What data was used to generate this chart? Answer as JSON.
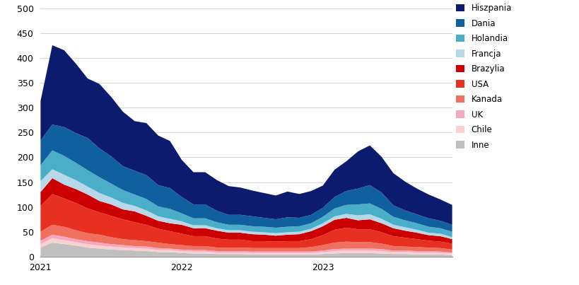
{
  "title": "",
  "xlabel": "",
  "ylabel": "",
  "ylim": [
    0,
    500
  ],
  "yticks": [
    0,
    50,
    100,
    150,
    200,
    250,
    300,
    350,
    400,
    450,
    500
  ],
  "xtick_positions": [
    0,
    12,
    24
  ],
  "xtick_labels": [
    "2021",
    "2022",
    "2023"
  ],
  "series_labels": [
    "Hiszpania",
    "Dania",
    "Holandia",
    "Francja",
    "Brazylia",
    "USA",
    "Kanada",
    "UK",
    "Chile",
    "Inne"
  ],
  "series_colors": [
    "#0d1b6e",
    "#1060a0",
    "#4baec8",
    "#b8d8ea",
    "#cc0000",
    "#e83020",
    "#f07060",
    "#f5a8c0",
    "#fad0d0",
    "#c0bfbf"
  ],
  "data": {
    "Hiszpania": [
      80,
      160,
      155,
      140,
      120,
      130,
      120,
      110,
      100,
      105,
      100,
      95,
      75,
      65,
      65,
      62,
      58,
      55,
      52,
      50,
      48,
      52,
      48,
      48,
      45,
      55,
      60,
      75,
      80,
      72,
      65,
      58,
      52,
      48,
      43,
      40
    ],
    "Dania": [
      50,
      52,
      58,
      60,
      65,
      58,
      55,
      48,
      48,
      48,
      43,
      42,
      33,
      28,
      28,
      23,
      20,
      20,
      20,
      18,
      17,
      19,
      17,
      17,
      18,
      23,
      28,
      32,
      37,
      33,
      23,
      20,
      18,
      17,
      15,
      14
    ],
    "Holandia": [
      32,
      38,
      38,
      35,
      33,
      32,
      28,
      26,
      23,
      23,
      20,
      20,
      16,
      14,
      14,
      12,
      11,
      11,
      11,
      11,
      11,
      11,
      11,
      11,
      13,
      16,
      18,
      22,
      22,
      20,
      16,
      14,
      13,
      12,
      11,
      11
    ],
    "Francja": [
      22,
      18,
      20,
      18,
      16,
      16,
      14,
      13,
      11,
      11,
      9,
      9,
      7,
      6,
      6,
      5,
      5,
      5,
      5,
      5,
      5,
      5,
      5,
      5,
      6,
      7,
      8,
      10,
      10,
      9,
      7,
      7,
      6,
      5,
      5,
      4
    ],
    "Brazylia": [
      28,
      32,
      28,
      28,
      28,
      23,
      23,
      20,
      22,
      18,
      16,
      16,
      18,
      16,
      16,
      16,
      14,
      14,
      14,
      13,
      12,
      13,
      14,
      16,
      18,
      20,
      20,
      18,
      20,
      18,
      16,
      14,
      13,
      11,
      11,
      9
    ],
    "USA": [
      52,
      62,
      57,
      55,
      50,
      45,
      43,
      40,
      36,
      33,
      28,
      26,
      23,
      20,
      20,
      18,
      16,
      16,
      14,
      14,
      13,
      14,
      14,
      16,
      20,
      26,
      28,
      26,
      26,
      23,
      20,
      18,
      16,
      14,
      13,
      12
    ],
    "Kanada": [
      18,
      20,
      20,
      18,
      16,
      16,
      14,
      12,
      12,
      11,
      11,
      9,
      9,
      8,
      8,
      7,
      7,
      7,
      7,
      7,
      7,
      7,
      7,
      9,
      11,
      13,
      14,
      13,
      13,
      11,
      9,
      8,
      8,
      7,
      7,
      6
    ],
    "UK": [
      7,
      7,
      7,
      6,
      6,
      6,
      5,
      5,
      4,
      4,
      4,
      3,
      3,
      3,
      3,
      3,
      3,
      3,
      3,
      3,
      3,
      3,
      3,
      3,
      3,
      4,
      4,
      4,
      4,
      4,
      3,
      3,
      3,
      3,
      3,
      2
    ],
    "Chile": [
      7,
      9,
      8,
      7,
      7,
      6,
      6,
      5,
      5,
      5,
      4,
      4,
      4,
      4,
      4,
      3,
      3,
      3,
      3,
      3,
      3,
      3,
      3,
      3,
      4,
      5,
      5,
      5,
      5,
      5,
      4,
      4,
      4,
      4,
      3,
      3
    ],
    "Inne": [
      18,
      28,
      25,
      22,
      18,
      16,
      14,
      13,
      12,
      11,
      9,
      9,
      7,
      6,
      6,
      5,
      5,
      5,
      4,
      4,
      4,
      4,
      4,
      4,
      5,
      6,
      7,
      7,
      7,
      6,
      5,
      5,
      4,
      4,
      4,
      3
    ]
  },
  "background_color": "#ffffff",
  "legend_fontsize": 8.5,
  "tick_fontsize": 9
}
